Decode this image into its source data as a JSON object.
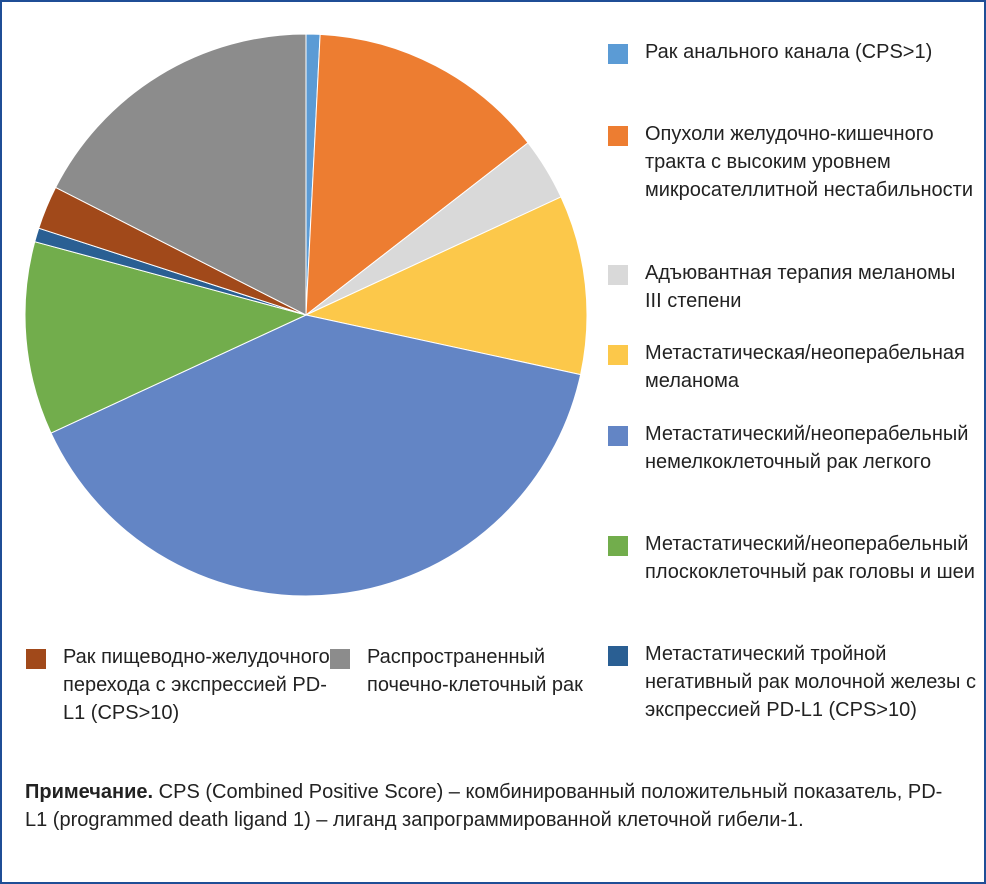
{
  "chart_data": {
    "type": "pie",
    "categories": [
      "Рак анального канала (CPS>1)",
      "Опухоли желудочно-кишечного тракта с высоким уровнем микросателлитной нестабильности",
      "Адъювантная терапия меланомы III степени",
      "Метастатическая/неоперабельная меланома",
      "Метастатический/неоперабельный немелкоклеточный рак легкого",
      "Метастатический/неоперабельный плоскоклеточный рак головы и шеи",
      "Метастатический тройной негативный рак молочной железы с экспрессией PD-L1 (CPS>10)",
      "Рак пищеводно-желудочного перехода с экспрессией PD-L1 (CPS>10)",
      "Распространенный почечно-клеточный рак"
    ],
    "values": [
      0.8,
      13.7,
      3.6,
      10.3,
      39.7,
      11.1,
      0.8,
      2.5,
      17.5
    ],
    "colors": [
      "#5b9bd5",
      "#ed7d31",
      "#d9d9d9",
      "#fcc84a",
      "#6385c5",
      "#72ad4c",
      "#2a5f93",
      "#a1491a",
      "#8c8c8c"
    ]
  },
  "note": {
    "label": "Примечание.",
    "text": "CPS (Combined Positive Score) – комбинированный положительный показатель, PD-L1 (programmed death ligand 1) – лиганд запрограммированной клеточной гибели-1."
  }
}
